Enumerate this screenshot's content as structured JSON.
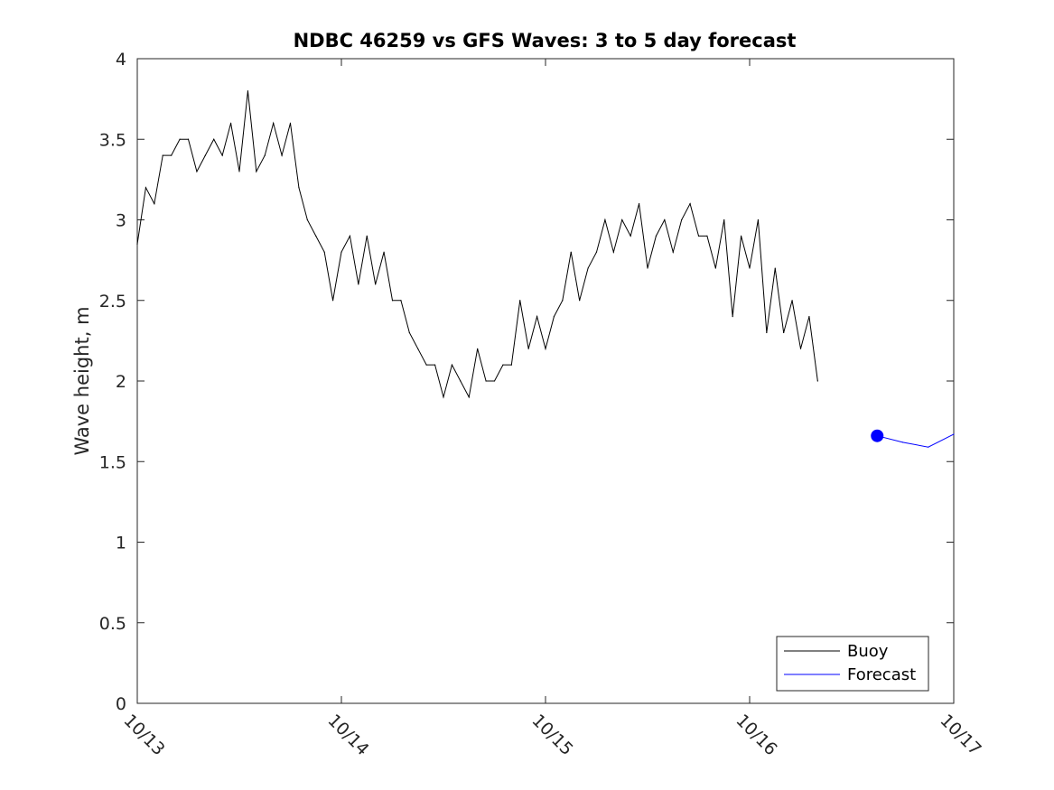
{
  "chart_data": {
    "type": "line",
    "title": "NDBC 46259 vs GFS Waves: 3 to 5 day forecast",
    "xlabel": "",
    "ylabel": "Wave height, m",
    "x_axis": {
      "type": "date",
      "ticks": [
        "10/13",
        "10/14",
        "10/15",
        "10/16",
        "10/17"
      ],
      "range": [
        "10/13 00:00",
        "10/17 00:00"
      ]
    },
    "ylim": [
      0,
      4
    ],
    "y_ticks": [
      "0",
      "0.5",
      "1",
      "1.5",
      "2",
      "2.5",
      "3",
      "3.5",
      "4"
    ],
    "grid": false,
    "legend_position": "bottom-right",
    "series": [
      {
        "name": "Buoy",
        "color": "#000000",
        "marker": "none",
        "x": [
          "10/13 00:00",
          "10/13 01:00",
          "10/13 02:00",
          "10/13 03:00",
          "10/13 04:00",
          "10/13 05:00",
          "10/13 06:00",
          "10/13 07:00",
          "10/13 08:00",
          "10/13 09:00",
          "10/13 10:00",
          "10/13 11:00",
          "10/13 12:00",
          "10/13 13:00",
          "10/13 14:00",
          "10/13 15:00",
          "10/13 16:00",
          "10/13 17:00",
          "10/13 18:00",
          "10/13 19:00",
          "10/13 20:00",
          "10/13 21:00",
          "10/13 22:00",
          "10/13 23:00",
          "10/14 00:00",
          "10/14 01:00",
          "10/14 02:00",
          "10/14 03:00",
          "10/14 04:00",
          "10/14 05:00",
          "10/14 06:00",
          "10/14 07:00",
          "10/14 08:00",
          "10/14 09:00",
          "10/14 10:00",
          "10/14 11:00",
          "10/14 12:00",
          "10/14 13:00",
          "10/14 14:00",
          "10/14 15:00",
          "10/14 16:00",
          "10/14 17:00",
          "10/14 18:00",
          "10/14 19:00",
          "10/14 20:00",
          "10/14 21:00",
          "10/14 22:00",
          "10/14 23:00",
          "10/15 00:00",
          "10/15 01:00",
          "10/15 02:00",
          "10/15 03:00",
          "10/15 04:00",
          "10/15 05:00",
          "10/15 06:00",
          "10/15 07:00",
          "10/15 08:00",
          "10/15 09:00",
          "10/15 10:00",
          "10/15 11:00",
          "10/15 12:00",
          "10/15 13:00",
          "10/15 14:00",
          "10/15 15:00",
          "10/15 16:00",
          "10/15 17:00",
          "10/15 18:00",
          "10/15 19:00",
          "10/15 20:00",
          "10/15 21:00",
          "10/15 22:00",
          "10/15 23:00",
          "10/16 00:00",
          "10/16 01:00",
          "10/16 02:00",
          "10/16 03:00",
          "10/16 04:00",
          "10/16 05:00",
          "10/16 06:00",
          "10/16 07:00",
          "10/16 08:00"
        ],
        "values": [
          2.85,
          3.2,
          3.1,
          3.4,
          3.4,
          3.5,
          3.5,
          3.3,
          3.4,
          3.5,
          3.4,
          3.6,
          3.3,
          3.8,
          3.3,
          3.4,
          3.6,
          3.4,
          3.6,
          3.2,
          3.0,
          2.9,
          2.8,
          2.5,
          2.8,
          2.9,
          2.6,
          2.9,
          2.6,
          2.8,
          2.5,
          2.5,
          2.3,
          2.2,
          2.1,
          2.1,
          1.9,
          2.1,
          2.0,
          1.9,
          2.2,
          2.0,
          2.0,
          2.1,
          2.1,
          2.5,
          2.2,
          2.4,
          2.2,
          2.4,
          2.5,
          2.8,
          2.5,
          2.7,
          2.8,
          3.0,
          2.8,
          3.0,
          2.9,
          3.1,
          2.7,
          2.9,
          3.0,
          2.8,
          3.0,
          3.1,
          2.9,
          2.9,
          2.7,
          3.0,
          2.4,
          2.9,
          2.7,
          3.0,
          2.3,
          2.7,
          2.3,
          2.5,
          2.2,
          2.4,
          2.0
        ]
      },
      {
        "name": "Forecast",
        "color": "#0000ff",
        "marker": "start-dot",
        "x": [
          "10/16 15:00",
          "10/16 18:00",
          "10/16 21:00",
          "10/17 00:00"
        ],
        "values": [
          1.66,
          1.62,
          1.59,
          1.67
        ]
      }
    ]
  }
}
